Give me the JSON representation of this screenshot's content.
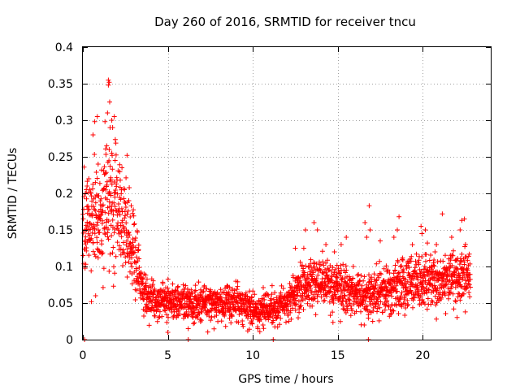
{
  "chart_data": {
    "type": "scatter",
    "title": "Day 260 of 2016, SRMTID for receiver tncu",
    "xlabel": "GPS time / hours",
    "ylabel": "SRMTID / TECUs",
    "xlim": [
      0,
      24
    ],
    "ylim": [
      0,
      0.4
    ],
    "xticks": [
      0,
      5,
      10,
      15,
      20
    ],
    "yticks": [
      0,
      0.05,
      0.1,
      0.15,
      0.2,
      0.25,
      0.3,
      0.35,
      0.4
    ],
    "xtick_labels": [
      "0",
      "5",
      "10",
      "15",
      "20"
    ],
    "ytick_labels": [
      "0",
      "0.05",
      "0.1",
      "0.15",
      "0.2",
      "0.25",
      "0.3",
      "0.35",
      "0.4"
    ],
    "grid": true,
    "marker": "+",
    "color": "#ff0000",
    "profile": [
      {
        "x": 0.0,
        "y": 0.14,
        "spread": 0.05
      },
      {
        "x": 0.5,
        "y": 0.17,
        "spread": 0.05
      },
      {
        "x": 1.0,
        "y": 0.15,
        "spread": 0.06
      },
      {
        "x": 1.5,
        "y": 0.2,
        "spread": 0.07
      },
      {
        "x": 2.0,
        "y": 0.18,
        "spread": 0.06
      },
      {
        "x": 2.5,
        "y": 0.15,
        "spread": 0.05
      },
      {
        "x": 3.0,
        "y": 0.12,
        "spread": 0.04
      },
      {
        "x": 3.5,
        "y": 0.07,
        "spread": 0.025
      },
      {
        "x": 4.0,
        "y": 0.055,
        "spread": 0.02
      },
      {
        "x": 6.0,
        "y": 0.05,
        "spread": 0.02
      },
      {
        "x": 8.0,
        "y": 0.05,
        "spread": 0.02
      },
      {
        "x": 9.0,
        "y": 0.05,
        "spread": 0.02
      },
      {
        "x": 10.0,
        "y": 0.04,
        "spread": 0.018
      },
      {
        "x": 11.0,
        "y": 0.04,
        "spread": 0.018
      },
      {
        "x": 12.0,
        "y": 0.05,
        "spread": 0.02
      },
      {
        "x": 13.0,
        "y": 0.07,
        "spread": 0.025
      },
      {
        "x": 14.0,
        "y": 0.08,
        "spread": 0.03
      },
      {
        "x": 15.0,
        "y": 0.07,
        "spread": 0.03
      },
      {
        "x": 16.0,
        "y": 0.065,
        "spread": 0.025
      },
      {
        "x": 17.0,
        "y": 0.06,
        "spread": 0.025
      },
      {
        "x": 18.0,
        "y": 0.07,
        "spread": 0.028
      },
      {
        "x": 19.0,
        "y": 0.075,
        "spread": 0.03
      },
      {
        "x": 20.0,
        "y": 0.08,
        "spread": 0.03
      },
      {
        "x": 21.0,
        "y": 0.08,
        "spread": 0.03
      },
      {
        "x": 22.0,
        "y": 0.085,
        "spread": 0.03
      },
      {
        "x": 22.8,
        "y": 0.09,
        "spread": 0.03
      }
    ],
    "extra_points": [
      {
        "x": 1.5,
        "y": 0.355
      },
      {
        "x": 1.55,
        "y": 0.352
      },
      {
        "x": 1.5,
        "y": 0.348
      },
      {
        "x": 1.58,
        "y": 0.325
      },
      {
        "x": 1.45,
        "y": 0.31
      },
      {
        "x": 1.85,
        "y": 0.305
      },
      {
        "x": 0.85,
        "y": 0.305
      },
      {
        "x": 1.7,
        "y": 0.3
      },
      {
        "x": 1.3,
        "y": 0.298
      },
      {
        "x": 0.7,
        "y": 0.298
      },
      {
        "x": 1.75,
        "y": 0.29
      },
      {
        "x": 1.6,
        "y": 0.29
      },
      {
        "x": 0.6,
        "y": 0.28
      },
      {
        "x": 1.4,
        "y": 0.265
      },
      {
        "x": 1.55,
        "y": 0.26
      },
      {
        "x": 1.7,
        "y": 0.255
      },
      {
        "x": 2.6,
        "y": 0.252
      },
      {
        "x": 1.9,
        "y": 0.245
      },
      {
        "x": 0.9,
        "y": 0.24
      },
      {
        "x": 2.3,
        "y": 0.235
      },
      {
        "x": 0.35,
        "y": 0.22
      },
      {
        "x": 2.2,
        "y": 0.218
      },
      {
        "x": 0.25,
        "y": 0.21
      },
      {
        "x": 0.2,
        "y": 0.205
      },
      {
        "x": 1.1,
        "y": 0.232
      },
      {
        "x": 2.45,
        "y": 0.205
      },
      {
        "x": 2.7,
        "y": 0.19
      },
      {
        "x": 0.5,
        "y": 0.052
      },
      {
        "x": 0.75,
        "y": 0.06
      },
      {
        "x": 13.6,
        "y": 0.16
      },
      {
        "x": 13.8,
        "y": 0.15
      },
      {
        "x": 13.1,
        "y": 0.15
      },
      {
        "x": 14.3,
        "y": 0.13
      },
      {
        "x": 13.0,
        "y": 0.125
      },
      {
        "x": 15.5,
        "y": 0.14
      },
      {
        "x": 15.2,
        "y": 0.13
      },
      {
        "x": 16.6,
        "y": 0.16
      },
      {
        "x": 16.85,
        "y": 0.183
      },
      {
        "x": 16.9,
        "y": 0.15
      },
      {
        "x": 16.7,
        "y": 0.14
      },
      {
        "x": 18.6,
        "y": 0.168
      },
      {
        "x": 18.5,
        "y": 0.15
      },
      {
        "x": 19.9,
        "y": 0.155
      },
      {
        "x": 19.95,
        "y": 0.145
      },
      {
        "x": 20.15,
        "y": 0.15
      },
      {
        "x": 21.15,
        "y": 0.172
      },
      {
        "x": 22.3,
        "y": 0.163
      },
      {
        "x": 22.45,
        "y": 0.165
      },
      {
        "x": 22.2,
        "y": 0.15
      },
      {
        "x": 21.7,
        "y": 0.14
      },
      {
        "x": 17.5,
        "y": 0.135
      },
      {
        "x": 18.3,
        "y": 0.14
      },
      {
        "x": 12.5,
        "y": 0.125
      },
      {
        "x": 14.8,
        "y": 0.12
      },
      {
        "x": 20.8,
        "y": 0.13
      },
      {
        "x": 5.0,
        "y": 0.01
      },
      {
        "x": 9.7,
        "y": 0.012
      },
      {
        "x": 10.3,
        "y": 0.015
      },
      {
        "x": 10.6,
        "y": 0.02
      },
      {
        "x": 6.2,
        "y": 0.015
      },
      {
        "x": 20.8,
        "y": 0.028
      },
      {
        "x": 8.4,
        "y": 0.018
      }
    ],
    "zero_points": [
      0.1,
      6.2,
      11.2,
      16.8
    ]
  }
}
